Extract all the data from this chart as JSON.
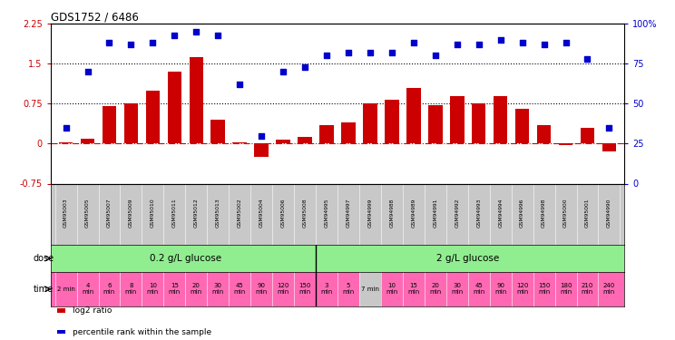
{
  "title": "GDS1752 / 6486",
  "samples": [
    "GSM95003",
    "GSM95005",
    "GSM95007",
    "GSM95009",
    "GSM95010",
    "GSM95011",
    "GSM95012",
    "GSM95013",
    "GSM95002",
    "GSM95004",
    "GSM95006",
    "GSM95008",
    "GSM94995",
    "GSM94997",
    "GSM94999",
    "GSM94988",
    "GSM94989",
    "GSM94991",
    "GSM94992",
    "GSM94993",
    "GSM94994",
    "GSM94996",
    "GSM94998",
    "GSM95000",
    "GSM95001",
    "GSM94990"
  ],
  "log2_ratio": [
    0.02,
    0.1,
    0.7,
    0.75,
    1.0,
    1.35,
    1.62,
    0.45,
    0.03,
    -0.25,
    0.08,
    0.12,
    0.35,
    0.4,
    0.75,
    0.82,
    1.05,
    0.72,
    0.9,
    0.75,
    0.9,
    0.65,
    0.35,
    -0.03,
    0.3,
    -0.15
  ],
  "percentile_rank": [
    35,
    70,
    88,
    87,
    88,
    93,
    95,
    93,
    62,
    30,
    70,
    73,
    80,
    82,
    82,
    82,
    88,
    80,
    87,
    87,
    90,
    88,
    87,
    88,
    78,
    35
  ],
  "bar_color": "#CC0000",
  "dot_color": "#0000CC",
  "ylim_left": [
    -0.75,
    2.25
  ],
  "ylim_right": [
    0,
    100
  ],
  "yticks_left": [
    -0.75,
    0.0,
    0.75,
    1.5,
    2.25
  ],
  "yticks_right": [
    0,
    25,
    50,
    75,
    100
  ],
  "dose_row_color": "#90EE90",
  "time_row_color": "#FF69B4",
  "sample_row_color": "#c8c8c8",
  "time_7min_color": "#c8c8c8",
  "legend_red": "log2 ratio",
  "legend_blue": "percentile rank within the sample",
  "time_labels": [
    "2 min",
    "4\nmin",
    "6\nmin",
    "8\nmin",
    "10\nmin",
    "15\nmin",
    "20\nmin",
    "30\nmin",
    "45\nmin",
    "90\nmin",
    "120\nmin",
    "150\nmin",
    "3\nmin",
    "5\nmin",
    "7 min",
    "10\nmin",
    "15\nmin",
    "20\nmin",
    "30\nmin",
    "45\nmin",
    "90\nmin",
    "120\nmin",
    "150\nmin",
    "180\nmin",
    "210\nmin",
    "240\nmin"
  ],
  "dose_split_idx": 12,
  "n_samples": 26
}
